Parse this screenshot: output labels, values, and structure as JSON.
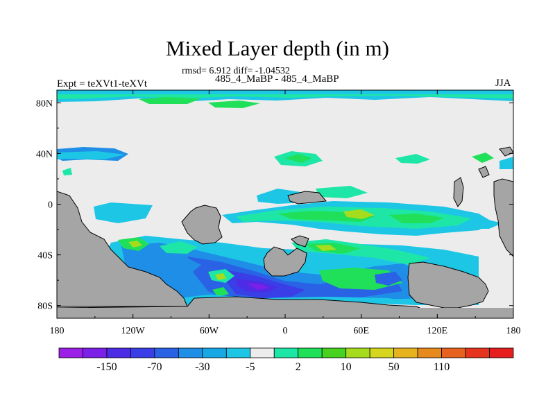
{
  "chart_data": {
    "type": "heatmap",
    "title": "Mixed Layer depth (in m)",
    "stats_line": "rmsd= 6.912 diff= -1.04532",
    "subtitle": "485_4_MaBP - 485_4_MaBP",
    "left_label": "Expt = teXVt1-teXVt",
    "right_label": "JJA",
    "x_ticks": [
      "180",
      "120W",
      "60W",
      "0",
      "60E",
      "120E",
      "180"
    ],
    "x_tick_values": [
      -180,
      -120,
      -60,
      0,
      60,
      120,
      180
    ],
    "y_ticks": [
      "80N",
      "40N",
      "0",
      "40S",
      "80S"
    ],
    "y_tick_values": [
      80,
      40,
      0,
      -40,
      -80
    ],
    "xlim": [
      -180,
      180
    ],
    "ylim": [
      -90,
      90
    ],
    "colorbar": {
      "levels": [
        "-150",
        "-70",
        "-30",
        "-5",
        "2",
        "10",
        "50",
        "110"
      ],
      "level_values": [
        -150,
        -70,
        -30,
        -5,
        2,
        10,
        50,
        110
      ],
      "colors": [
        "#9b1fe6",
        "#7b20e6",
        "#4d2ce6",
        "#3a3ee6",
        "#2a62e6",
        "#1f8ee6",
        "#18a8e6",
        "#1ec6e6",
        "#ececec",
        "#1ee6a6",
        "#20e05a",
        "#46d21e",
        "#a6dc1e",
        "#d6d61e",
        "#e6b21e",
        "#e68a1e",
        "#e6621e",
        "#e6351e",
        "#e61e1e"
      ]
    },
    "fields": [
      {
        "name": "background",
        "color": "#ececec"
      },
      {
        "name": "land",
        "color": "#a5a5a5"
      },
      {
        "name": "cyan",
        "color": "#1ec6e6"
      },
      {
        "name": "light-blue",
        "color": "#18a8e6"
      },
      {
        "name": "mid-blue",
        "color": "#1f8ee6"
      },
      {
        "name": "blue",
        "color": "#2a62e6"
      },
      {
        "name": "dark-blue",
        "color": "#3a3ee6"
      },
      {
        "name": "navy",
        "color": "#4d2ce6"
      },
      {
        "name": "purple",
        "color": "#7b20e6"
      },
      {
        "name": "teal",
        "color": "#1ee6a6"
      },
      {
        "name": "green",
        "color": "#20e05a"
      },
      {
        "name": "yellow-green",
        "color": "#a6dc1e"
      }
    ]
  }
}
